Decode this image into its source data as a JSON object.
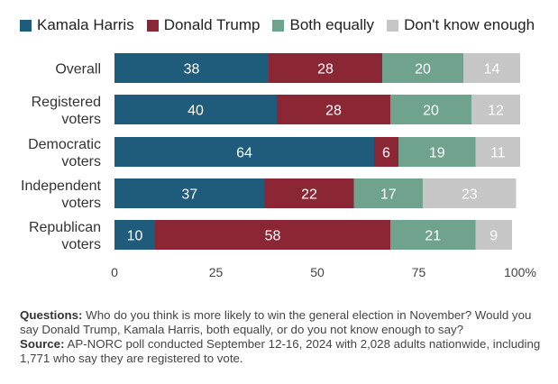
{
  "chart_data": {
    "type": "bar",
    "orientation": "horizontal",
    "stacked": true,
    "categories": [
      "Overall",
      "Registered voters",
      "Democratic voters",
      "Independent voters",
      "Republican voters"
    ],
    "category_lines": [
      [
        "Overall"
      ],
      [
        "Registered",
        "voters"
      ],
      [
        "Democratic",
        "voters"
      ],
      [
        "Independent",
        "voters"
      ],
      [
        "Republican",
        "voters"
      ]
    ],
    "series": [
      {
        "name": "Kamala Harris",
        "color": "#1f5b7a",
        "values": [
          38,
          40,
          64,
          37,
          10
        ]
      },
      {
        "name": "Donald Trump",
        "color": "#8b2635",
        "values": [
          28,
          28,
          6,
          22,
          58
        ]
      },
      {
        "name": "Both equally",
        "color": "#6fa38d",
        "values": [
          20,
          20,
          19,
          17,
          21
        ]
      },
      {
        "name": "Don't know enough",
        "color": "#c6c6c6",
        "values": [
          14,
          12,
          11,
          23,
          9
        ]
      }
    ],
    "xlim": [
      0,
      100
    ],
    "xticks": [
      0,
      25,
      50,
      75,
      100
    ],
    "xtick_labels": [
      "0",
      "25",
      "50",
      "75",
      "100%"
    ],
    "legend_position": "top"
  },
  "notes": {
    "questions_label": "Questions:",
    "questions_text": "Who do you think is more likely to win the general election in November? Would you say Donald Trump, Kamala Harris, both equally, or do you not know enough to say?",
    "source_label": "Source:",
    "source_text": "AP-NORC poll conducted September 12-16, 2024 with 2,028 adults nationwide, including 1,771 who say they are registered to vote."
  }
}
